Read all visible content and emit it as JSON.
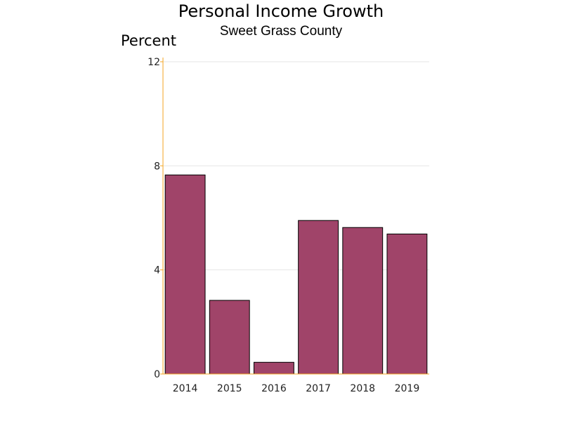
{
  "chart_data": {
    "type": "bar",
    "title": "Personal Income Growth",
    "subtitle": "Sweet Grass County",
    "ylabel": "Percent",
    "xlabel": "",
    "categories": [
      "2014",
      "2015",
      "2016",
      "2017",
      "2018",
      "2019"
    ],
    "values": [
      7.65,
      2.83,
      0.45,
      5.9,
      5.63,
      5.38
    ],
    "ylim": [
      0,
      12
    ],
    "yticks": [
      0,
      4,
      8,
      12
    ],
    "grid": true,
    "legend": "none",
    "colors": {
      "bar": "#a04469",
      "bar_outline": "#000000",
      "axis": "#f5a623",
      "grid": "#e6e6e6"
    }
  }
}
